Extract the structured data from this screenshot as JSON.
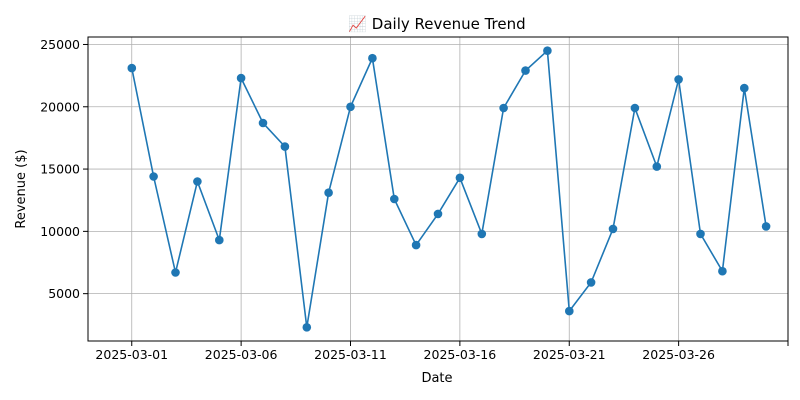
{
  "chart_data": {
    "type": "line",
    "title": "📈 Daily Revenue Trend",
    "xlabel": "Date",
    "ylabel": "Revenue ($)",
    "grid": true,
    "color": "#1f77b4",
    "marker": "circle",
    "x": [
      "2025-03-01",
      "2025-03-02",
      "2025-03-03",
      "2025-03-04",
      "2025-03-05",
      "2025-03-06",
      "2025-03-07",
      "2025-03-08",
      "2025-03-09",
      "2025-03-10",
      "2025-03-11",
      "2025-03-12",
      "2025-03-13",
      "2025-03-14",
      "2025-03-15",
      "2025-03-16",
      "2025-03-17",
      "2025-03-18",
      "2025-03-19",
      "2025-03-20",
      "2025-03-21",
      "2025-03-22",
      "2025-03-23",
      "2025-03-24",
      "2025-03-25",
      "2025-03-26",
      "2025-03-27",
      "2025-03-28",
      "2025-03-29",
      "2025-03-30"
    ],
    "y": [
      23100,
      14400,
      6700,
      14000,
      9300,
      22300,
      18700,
      16800,
      2300,
      13100,
      20000,
      23900,
      12600,
      8900,
      11400,
      14300,
      9800,
      19900,
      22900,
      24500,
      3600,
      5900,
      10200,
      19900,
      15200,
      22200,
      9800,
      6800,
      21500,
      10400
    ],
    "xlim": [
      "2025-02-27",
      "2025-03-31"
    ],
    "ylim": [
      1200,
      25600
    ],
    "x_tick_labels": [
      "2025-03-01",
      "2025-03-06",
      "2025-03-11",
      "2025-03-16",
      "2025-03-21",
      "2025-03-26",
      ""
    ],
    "y_ticks": [
      5000,
      10000,
      15000,
      20000,
      25000
    ],
    "y_tick_labels": [
      "5000",
      "10000",
      "15000",
      "20000",
      "25000"
    ]
  }
}
